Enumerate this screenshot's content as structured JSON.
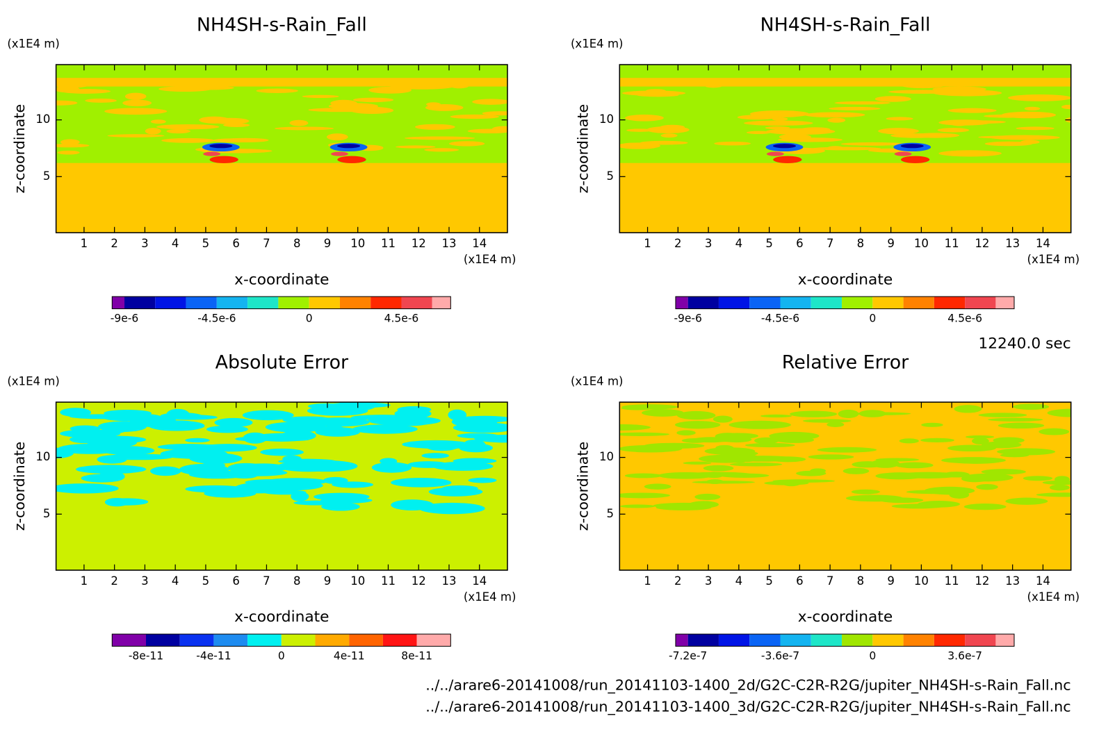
{
  "chart_data": [
    {
      "type": "contour",
      "title": "NH4SH-s-Rain_Fall",
      "x_label": "x-coordinate",
      "y_label": "z-coordinate",
      "x_unit": "(x1E4 m)",
      "y_unit": "(x1E4 m)",
      "xlim": [
        0.08,
        14.92
      ],
      "ylim": [
        0.06,
        14.87
      ],
      "xticks": [
        1,
        2,
        3,
        4,
        5,
        6,
        7,
        8,
        9,
        10,
        11,
        12,
        13,
        14
      ],
      "yticks": [
        5,
        10
      ],
      "colorbar": {
        "levels": [
          -9.6e-06,
          -9e-06,
          -7.5e-06,
          -6e-06,
          -4.5e-06,
          -3e-06,
          -1.5e-06,
          0,
          1.5e-06,
          3e-06,
          4.5e-06,
          6e-06,
          6.9e-06
        ],
        "colors": [
          "#8000a8",
          "#0000a0",
          "#0014e6",
          "#0a64f5",
          "#14b4f0",
          "#1ee6c8",
          "#a0f000",
          "#ffc800",
          "#ff8200",
          "#ff2800",
          "#f04650",
          "#ffaaaa"
        ],
        "ticks": [
          {
            "value": -9e-06,
            "label": "-9e-6"
          },
          {
            "value": -4.5e-06,
            "label": "-4.5e-6"
          },
          0,
          {
            "value": 4.5e-06,
            "label": "4.5e-6"
          }
        ]
      }
    },
    {
      "type": "contour",
      "title": "NH4SH-s-Rain_Fall",
      "x_label": "x-coordinate",
      "y_label": "z-coordinate",
      "x_unit": "(x1E4 m)",
      "y_unit": "(x1E4 m)",
      "xlim": [
        0.08,
        14.92
      ],
      "ylim": [
        0.06,
        14.87
      ],
      "xticks": [
        1,
        2,
        3,
        4,
        5,
        6,
        7,
        8,
        9,
        10,
        11,
        12,
        13,
        14
      ],
      "yticks": [
        5,
        10
      ],
      "colorbar": {
        "levels": [
          -9.6e-06,
          -9e-06,
          -7.5e-06,
          -6e-06,
          -4.5e-06,
          -3e-06,
          -1.5e-06,
          0,
          1.5e-06,
          3e-06,
          4.5e-06,
          6e-06,
          6.9e-06
        ],
        "colors": [
          "#8000a8",
          "#0000a0",
          "#0014e6",
          "#0a64f5",
          "#14b4f0",
          "#1ee6c8",
          "#a0f000",
          "#ffc800",
          "#ff8200",
          "#ff2800",
          "#f04650",
          "#ffaaaa"
        ],
        "ticks": [
          {
            "value": -9e-06,
            "label": "-9e-6"
          },
          {
            "value": -4.5e-06,
            "label": "-4.5e-6"
          },
          0,
          {
            "value": 4.5e-06,
            "label": "4.5e-6"
          }
        ]
      }
    },
    {
      "type": "contour",
      "title": "Absolute Error",
      "x_label": "x-coordinate",
      "y_label": "z-coordinate",
      "x_unit": "(x1E4 m)",
      "y_unit": "(x1E4 m)",
      "xlim": [
        0.08,
        14.92
      ],
      "ylim": [
        0.06,
        14.87
      ],
      "xticks": [
        1,
        2,
        3,
        4,
        5,
        6,
        7,
        8,
        9,
        10,
        11,
        12,
        13,
        14
      ],
      "yticks": [
        5,
        10
      ],
      "colorbar": {
        "levels": [
          -1e-10,
          -8e-11,
          -6e-11,
          -4e-11,
          -2e-11,
          0,
          2e-11,
          4e-11,
          6e-11,
          8e-11,
          1e-10
        ],
        "colors": [
          "#8000a8",
          "#0000a0",
          "#0a32f0",
          "#1e8cf0",
          "#00f0f0",
          "#ccf000",
          "#ffaa00",
          "#ff6400",
          "#ff1414",
          "#ffaaaa"
        ],
        "ticks": [
          {
            "value": -8e-11,
            "label": "-8e-11"
          },
          {
            "value": -4e-11,
            "label": "-4e-11"
          },
          0,
          {
            "value": 4e-11,
            "label": "4e-11"
          },
          {
            "value": 8e-11,
            "label": "8e-11"
          }
        ]
      }
    },
    {
      "type": "contour",
      "title": "Relative Error",
      "x_label": "x-coordinate",
      "y_label": "z-coordinate",
      "x_unit": "(x1E4 m)",
      "y_unit": "(x1E4 m)",
      "xlim": [
        0.08,
        14.92
      ],
      "ylim": [
        0.06,
        14.87
      ],
      "xticks": [
        1,
        2,
        3,
        4,
        5,
        6,
        7,
        8,
        9,
        10,
        11,
        12,
        13,
        14
      ],
      "yticks": [
        5,
        10
      ],
      "colorbar": {
        "levels": [
          -7.68e-07,
          -7.2e-07,
          -6e-07,
          -4.8e-07,
          -3.6e-07,
          -2.4e-07,
          -1.2e-07,
          0,
          1.2e-07,
          2.4e-07,
          3.6e-07,
          4.8e-07,
          5.52e-07
        ],
        "colors": [
          "#8000a8",
          "#0000a0",
          "#0014e6",
          "#0a64f5",
          "#14b4f0",
          "#1ee6c8",
          "#a0e600",
          "#ffc800",
          "#ff8200",
          "#ff2800",
          "#f04650",
          "#ffaaaa"
        ],
        "ticks": [
          {
            "value": -7.2e-07,
            "label": "-7.2e-7"
          },
          {
            "value": -3.6e-07,
            "label": "-3.6e-7"
          },
          0,
          {
            "value": 3.6e-07,
            "label": "3.6e-7"
          }
        ]
      }
    }
  ],
  "time_label": "12240.0 sec",
  "files": [
    "../../arare6-20141008/run_20141103-1400_2d/G2C-C2R-R2G/jupiter_NH4SH-s-Rain_Fall.nc",
    "../../arare6-20141008/run_20141103-1400_3d/G2C-C2R-R2G/jupiter_NH4SH-s-Rain_Fall.nc"
  ]
}
